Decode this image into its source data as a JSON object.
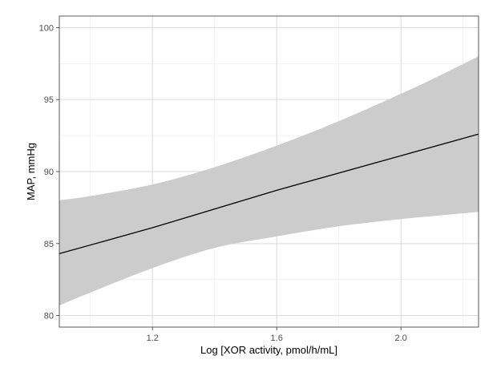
{
  "chart_data": {
    "type": "line",
    "title": "",
    "xlabel": "Log [XOR activity, pmol/h/mL]",
    "ylabel": "MAP, mmHg",
    "xlim": [
      0.9,
      2.25
    ],
    "ylim": [
      79.2,
      100.8
    ],
    "x_ticks": [
      1.2,
      1.6,
      2.0
    ],
    "x_tick_labels": [
      "1.2",
      "1.6",
      "2.0"
    ],
    "y_ticks": [
      80,
      85,
      90,
      95,
      100
    ],
    "y_tick_labels": [
      "80",
      "85",
      "90",
      "95",
      "100"
    ],
    "grid": true,
    "legend": "none",
    "series": [
      {
        "x": [
          0.9,
          1.2,
          1.6,
          2.0,
          2.25
        ],
        "y": [
          84.3,
          86.1,
          88.7,
          91.1,
          92.6
        ]
      }
    ],
    "confidence_band": {
      "x": [
        0.9,
        1.0,
        1.2,
        1.4,
        1.6,
        1.8,
        2.0,
        2.1,
        2.25
      ],
      "lower": [
        80.7,
        81.6,
        83.3,
        84.7,
        85.5,
        86.2,
        86.7,
        86.9,
        87.2
      ],
      "upper": [
        88.0,
        88.3,
        89.1,
        90.3,
        91.8,
        93.5,
        95.4,
        96.4,
        98.0
      ]
    },
    "colors": {
      "line": "#000000",
      "band": "#cccccc",
      "grid_major": "#d9d9d9",
      "grid_minor": "#ececec",
      "panel_border": "#333333"
    }
  }
}
